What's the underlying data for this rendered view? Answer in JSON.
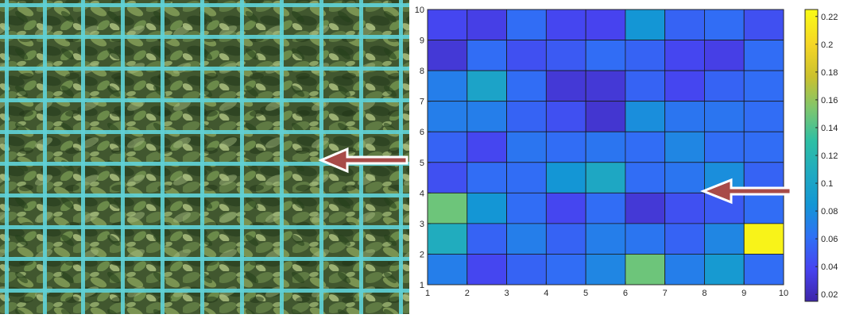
{
  "chart_data": {
    "type": "heatmap",
    "x_ticks": [
      "1",
      "2",
      "3",
      "4",
      "5",
      "6",
      "7",
      "8",
      "9",
      "10"
    ],
    "y_ticks": [
      "1",
      "2",
      "3",
      "4",
      "5",
      "6",
      "7",
      "8",
      "9",
      "10"
    ],
    "xlim": [
      1,
      10
    ],
    "ylim": [
      1,
      10
    ],
    "colorbar_ticks": [
      "0.02",
      "0.04",
      "0.06",
      "0.08",
      "0.1",
      "0.12",
      "0.14",
      "0.16",
      "0.18",
      "0.2",
      "0.22"
    ],
    "colorbar_range": [
      0.015,
      0.225
    ],
    "colormap": [
      "#3e26a8",
      "#4743f0",
      "#2f70f5",
      "#1496d5",
      "#20aac0",
      "#2ebfa4",
      "#7ec66e",
      "#cbc12e",
      "#f5d626",
      "#f9fb15"
    ],
    "cells_top_to_bottom": [
      [
        0.04,
        0.035,
        0.06,
        0.04,
        0.038,
        0.085,
        0.055,
        0.06,
        0.045
      ],
      [
        0.03,
        0.06,
        0.045,
        0.05,
        0.06,
        0.055,
        0.04,
        0.035,
        0.06
      ],
      [
        0.07,
        0.1,
        0.06,
        0.03,
        0.03,
        0.055,
        0.04,
        0.055,
        0.06
      ],
      [
        0.07,
        0.07,
        0.055,
        0.045,
        0.028,
        0.08,
        0.065,
        0.065,
        0.06
      ],
      [
        0.055,
        0.04,
        0.065,
        0.06,
        0.065,
        0.06,
        0.075,
        0.06,
        0.06
      ],
      [
        0.045,
        0.06,
        0.06,
        0.085,
        0.105,
        0.06,
        0.065,
        0.08,
        0.055
      ],
      [
        0.15,
        0.085,
        0.06,
        0.04,
        0.06,
        0.03,
        0.045,
        0.05,
        0.06
      ],
      [
        0.11,
        0.055,
        0.07,
        0.055,
        0.07,
        0.065,
        0.055,
        0.075,
        0.22
      ],
      [
        0.07,
        0.04,
        0.055,
        0.06,
        0.075,
        0.15,
        0.07,
        0.09,
        0.06
      ]
    ]
  },
  "photo": {
    "grid_line_color": "#5fd0d6",
    "arrow_color": "#a84b48"
  }
}
